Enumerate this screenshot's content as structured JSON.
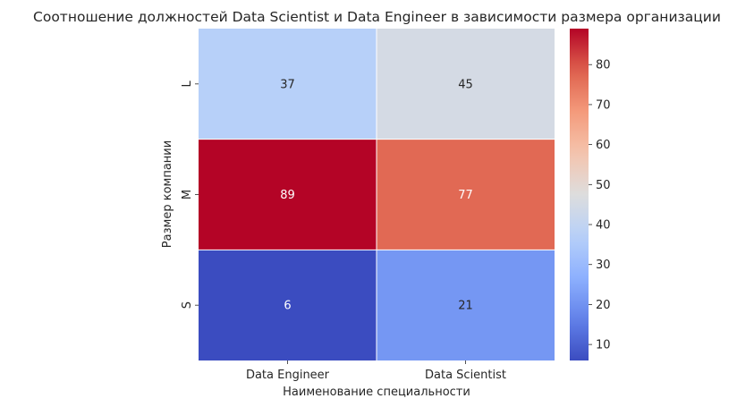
{
  "chart_data": {
    "type": "heatmap",
    "title": "Соотношение должностей Data Scientist и Data Engineer в зависимости размера организации",
    "xlabel": "Наименование специальности",
    "ylabel": "Размер компании",
    "x_categories": [
      "Data Engineer",
      "Data Scientist"
    ],
    "y_categories": [
      "L",
      "M",
      "S"
    ],
    "values": [
      [
        37,
        45
      ],
      [
        89,
        77
      ],
      [
        6,
        21
      ]
    ],
    "colormap": "coolwarm",
    "vmin": 6,
    "vmax": 89,
    "colorbar_ticks": [
      10,
      20,
      30,
      40,
      50,
      60,
      70,
      80
    ],
    "annotations": true
  }
}
